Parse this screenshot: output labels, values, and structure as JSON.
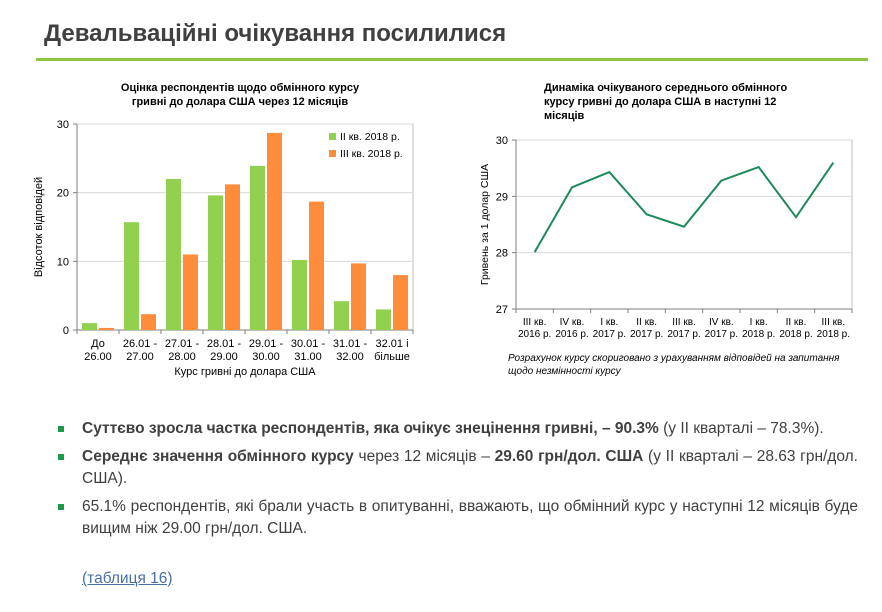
{
  "page": {
    "title": "Девальваційні очікування посилилися"
  },
  "chart_data": [
    {
      "type": "bar",
      "title_line1": "Оцінка респондентів щодо обмінного курсу",
      "title_line2": "гривні до долара США через 12 місяців",
      "xlabel": "Курс гривні до долара США",
      "ylabel": "Відсоток відповідей",
      "ylim": [
        0,
        30
      ],
      "yticks": [
        "0",
        "10",
        "20",
        "30"
      ],
      "categories": [
        [
          "До",
          "26.00"
        ],
        [
          "26.01 -",
          "27.00"
        ],
        [
          "27.01 -",
          "28.00"
        ],
        [
          "28.01 -",
          "29.00"
        ],
        [
          "29.01 -",
          "30.00"
        ],
        [
          "30.01 -",
          "31.00"
        ],
        [
          "31.01 -",
          "32.00"
        ],
        [
          "32.01 і",
          "більше"
        ]
      ],
      "legend_position": "top-right",
      "series": [
        {
          "name": "ІІ кв. 2018 р.",
          "color": "#92d050",
          "values": [
            1.0,
            15.7,
            22.0,
            19.6,
            23.9,
            10.2,
            4.2,
            3.0
          ]
        },
        {
          "name": "ІІІ кв. 2018 р.",
          "color": "#ff8c3a",
          "values": [
            0.3,
            2.3,
            11.0,
            21.2,
            28.7,
            18.7,
            9.7,
            8.0
          ]
        }
      ]
    },
    {
      "type": "line",
      "title_line1": "Динаміка очікуваного середнього обмінного",
      "title_line2": "курсу гривні до долара США  в наступні 12",
      "title_line3": "місяців",
      "ylabel": "Гривень за 1 долар США",
      "ylim": [
        27,
        30
      ],
      "yticks": [
        "27",
        "28",
        "29",
        "30"
      ],
      "color": "#1e8a5a",
      "x": [
        [
          "ІІІ кв.",
          "2016 р."
        ],
        [
          "ІV кв.",
          "2016 р."
        ],
        [
          "І кв.",
          "2017 р."
        ],
        [
          "ІІ кв.",
          "2017 р."
        ],
        [
          "ІІІ кв.",
          "2017 р."
        ],
        [
          "ІV кв.",
          "2017 р."
        ],
        [
          "І кв.",
          "2018 р."
        ],
        [
          "ІІ кв.",
          "2018 р."
        ],
        [
          "ІІІ кв.",
          "2018 р."
        ]
      ],
      "values": [
        28.01,
        29.16,
        29.43,
        28.68,
        28.46,
        29.28,
        29.52,
        28.63,
        29.6
      ]
    }
  ],
  "note": "Розрахунок курсу скориговано з урахуванням відповідей на запитання щодо незмінності курсу",
  "bullets": [
    {
      "bold": "Суттєво зросла частка респондентів, яка очікує знецінення гривні, – 90.3%",
      "rest": " (у ІІ кварталі – 78.3%)."
    },
    {
      "bold": "Середнє значення обмінного курсу",
      "mid": " через 12 місяців – ",
      "bold2": "29.60 грн/дол. США",
      "rest": " (у ІІ кварталі – 28.63 грн/дол. США)."
    },
    {
      "plain": "65.1% респондентів, які брали участь в опитуванні, вважають, що обмінний курс у наступні 12 місяців буде вищим ніж 29.00 грн/дол. США."
    }
  ],
  "link_label": "(таблиця 16)"
}
